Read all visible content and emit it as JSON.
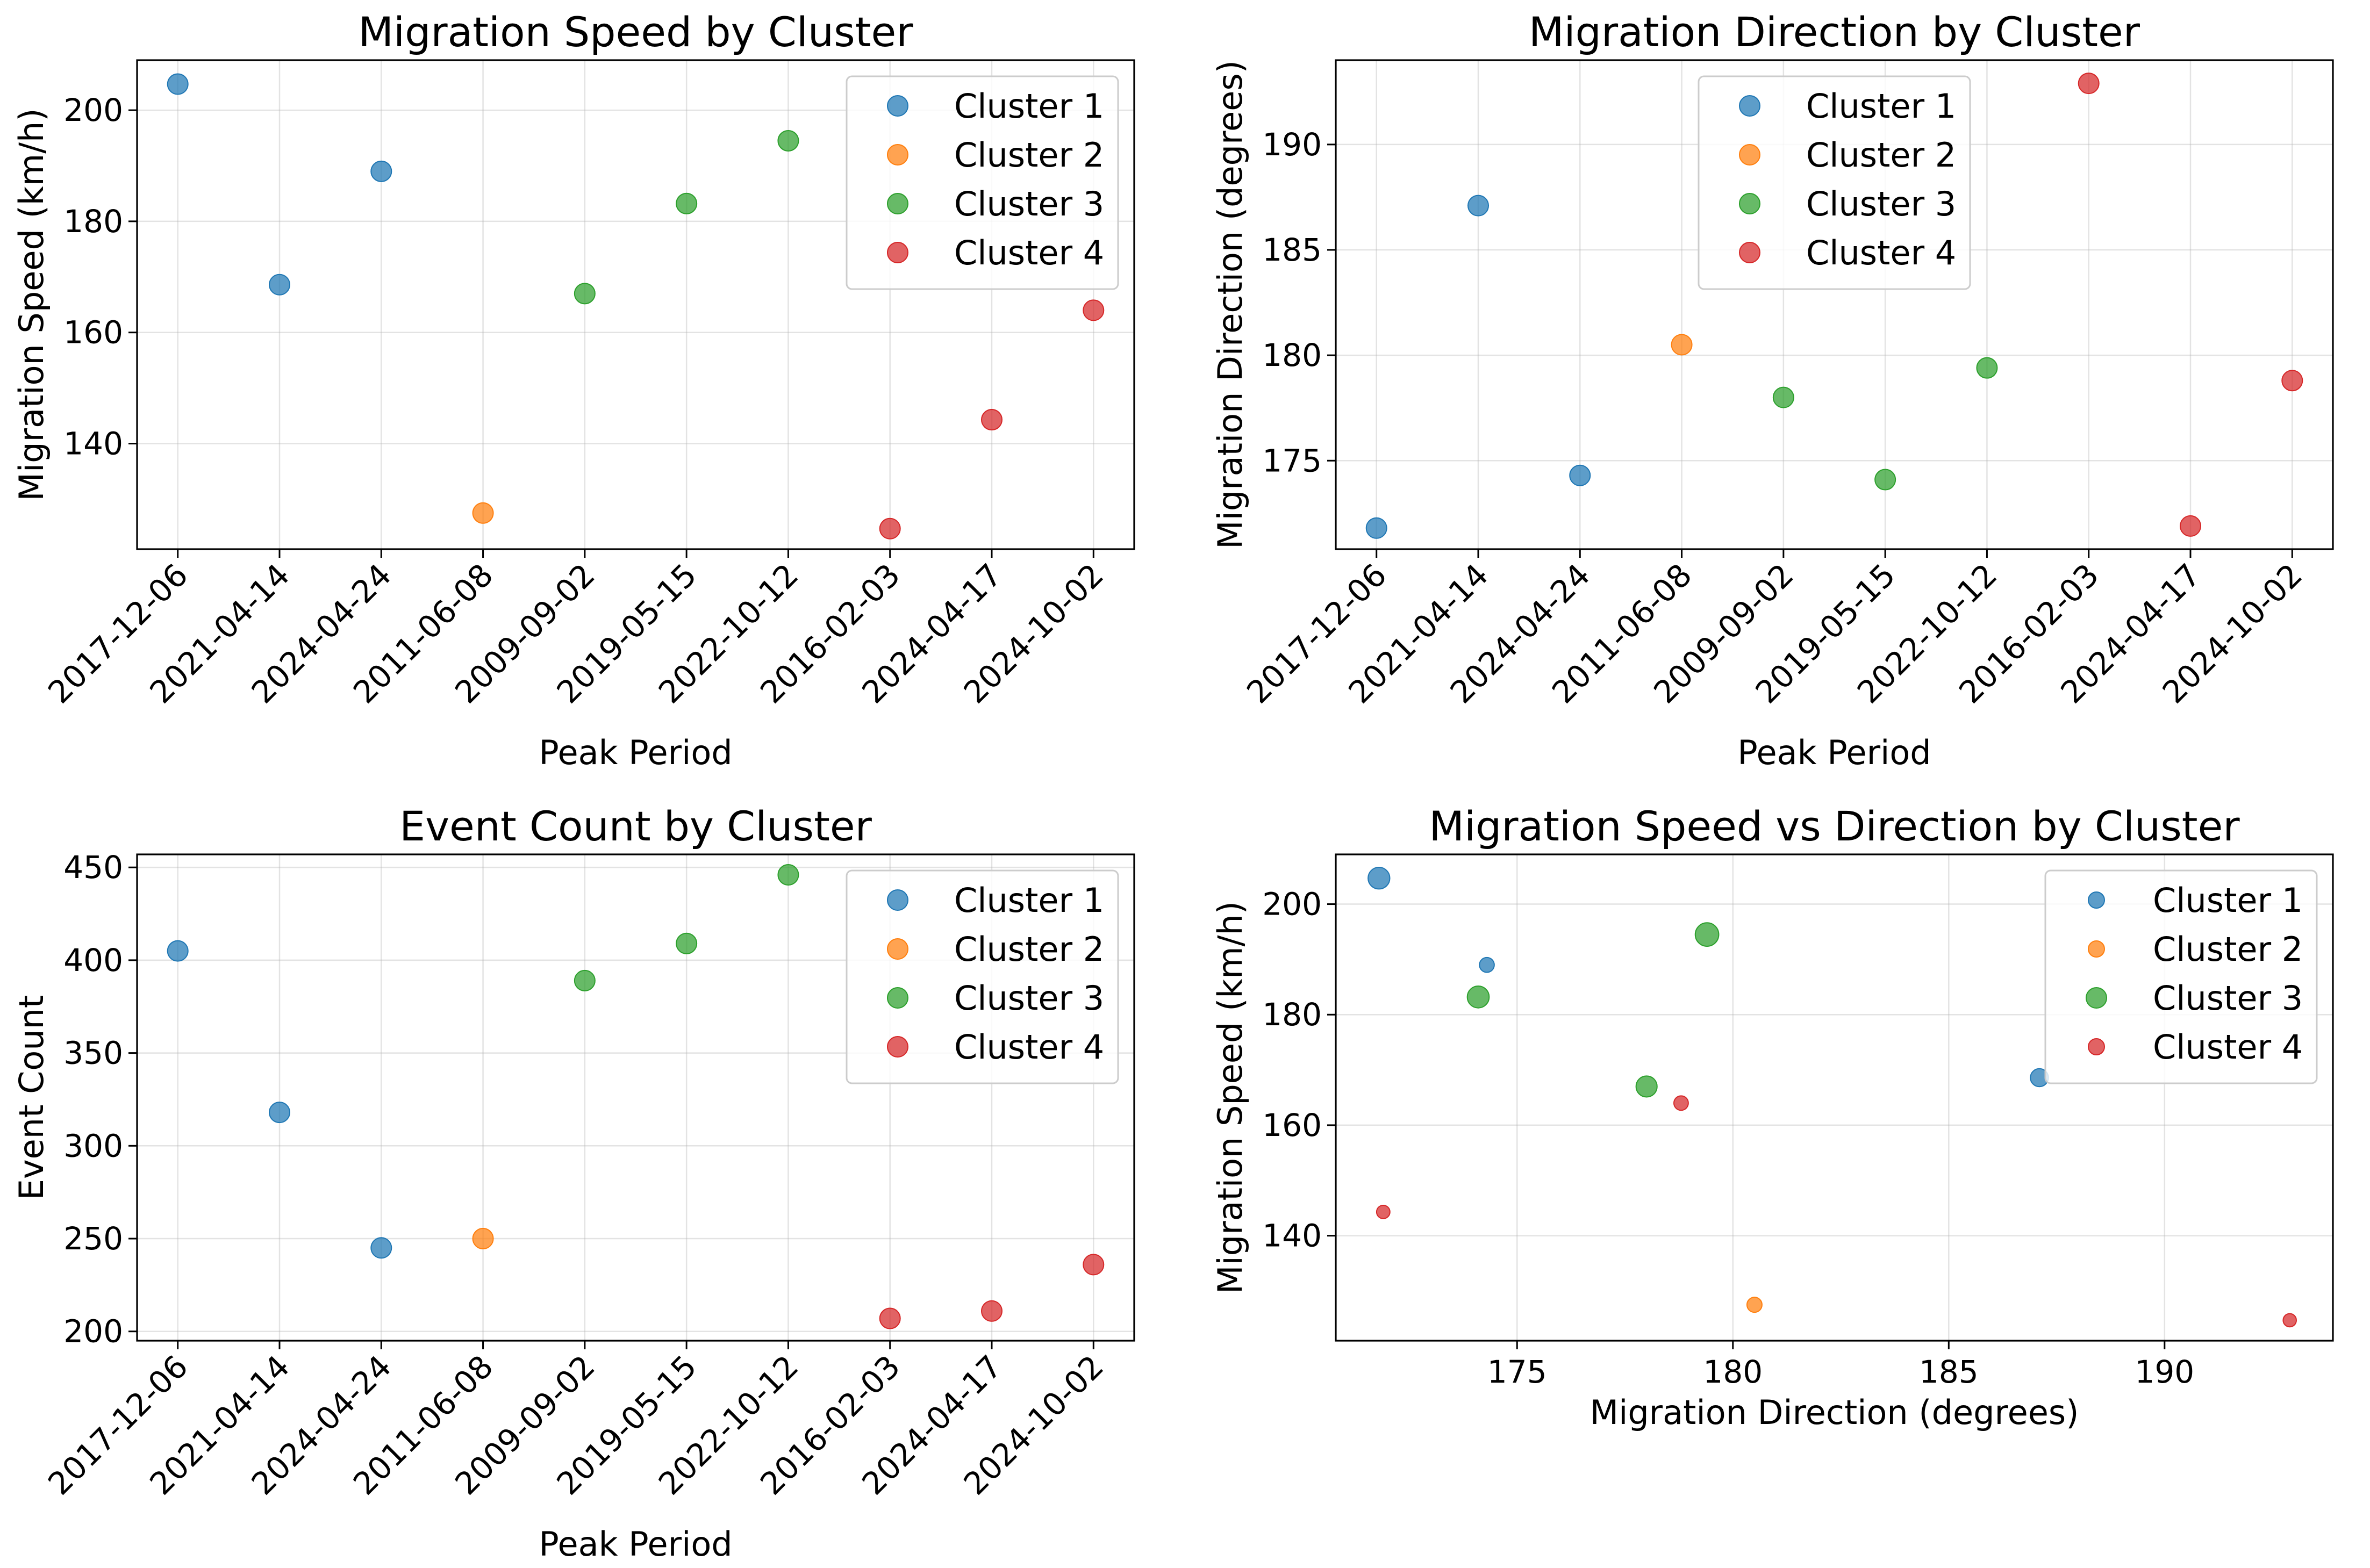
{
  "chart_data": [
    {
      "type": "scatter",
      "title": "Migration Speed by Cluster",
      "xlabel": "Peak Period",
      "ylabel": "Migration Speed (km/h)",
      "categories": [
        "2017-12-06",
        "2021-04-14",
        "2024-04-24",
        "2011-06-08",
        "2009-09-02",
        "2019-05-15",
        "2022-10-12",
        "2016-02-03",
        "2024-04-17",
        "2024-10-02"
      ],
      "ylim": [
        121,
        209
      ],
      "yticks": [
        140,
        160,
        180,
        200
      ],
      "grid": true,
      "legend": "top-right",
      "series": [
        {
          "name": "Cluster 1",
          "color": "#1f77b4",
          "x": [
            0,
            1,
            2
          ],
          "y": [
            204.7,
            168.6,
            189.0
          ]
        },
        {
          "name": "Cluster 2",
          "color": "#ff7f0e",
          "x": [
            3
          ],
          "y": [
            127.5
          ]
        },
        {
          "name": "Cluster 3",
          "color": "#2ca02c",
          "x": [
            4,
            5,
            6
          ],
          "y": [
            167.0,
            183.2,
            194.5
          ]
        },
        {
          "name": "Cluster 4",
          "color": "#d62728",
          "x": [
            7,
            8,
            9
          ],
          "y": [
            124.7,
            144.3,
            164.0
          ]
        }
      ]
    },
    {
      "type": "scatter",
      "title": "Migration Direction by Cluster",
      "xlabel": "Peak Period",
      "ylabel": "Migration Direction (degrees)",
      "categories": [
        "2017-12-06",
        "2021-04-14",
        "2024-04-24",
        "2011-06-08",
        "2009-09-02",
        "2019-05-15",
        "2022-10-12",
        "2016-02-03",
        "2024-04-17",
        "2024-10-02"
      ],
      "ylim": [
        170.8,
        194.0
      ],
      "yticks": [
        175,
        180,
        185,
        190
      ],
      "grid": true,
      "legend": "top-center",
      "series": [
        {
          "name": "Cluster 1",
          "color": "#1f77b4",
          "x": [
            0,
            1,
            2
          ],
          "y": [
            171.8,
            187.1,
            174.3
          ]
        },
        {
          "name": "Cluster 2",
          "color": "#ff7f0e",
          "x": [
            3
          ],
          "y": [
            180.5
          ]
        },
        {
          "name": "Cluster 3",
          "color": "#2ca02c",
          "x": [
            4,
            5,
            6
          ],
          "y": [
            178.0,
            174.1,
            179.4
          ]
        },
        {
          "name": "Cluster 4",
          "color": "#d62728",
          "x": [
            7,
            8,
            9
          ],
          "y": [
            192.9,
            171.9,
            178.8
          ]
        }
      ]
    },
    {
      "type": "scatter",
      "title": "Event Count by Cluster",
      "xlabel": "Peak Period",
      "ylabel": "Event Count",
      "categories": [
        "2017-12-06",
        "2021-04-14",
        "2024-04-24",
        "2011-06-08",
        "2009-09-02",
        "2019-05-15",
        "2022-10-12",
        "2016-02-03",
        "2024-04-17",
        "2024-10-02"
      ],
      "ylim": [
        195,
        457
      ],
      "yticks": [
        200,
        250,
        300,
        350,
        400,
        450
      ],
      "grid": true,
      "legend": "top-right",
      "series": [
        {
          "name": "Cluster 1",
          "color": "#1f77b4",
          "x": [
            0,
            1,
            2
          ],
          "y": [
            405,
            318,
            245
          ]
        },
        {
          "name": "Cluster 2",
          "color": "#ff7f0e",
          "x": [
            3
          ],
          "y": [
            250
          ]
        },
        {
          "name": "Cluster 3",
          "color": "#2ca02c",
          "x": [
            4,
            5,
            6
          ],
          "y": [
            389,
            409,
            446
          ]
        },
        {
          "name": "Cluster 4",
          "color": "#d62728",
          "x": [
            7,
            8,
            9
          ],
          "y": [
            207,
            211,
            236
          ]
        }
      ]
    },
    {
      "type": "scatter",
      "title": "Migration Speed vs Direction by Cluster",
      "xlabel": "Migration Direction (degrees)",
      "ylabel": "Migration Speed (km/h)",
      "xlim": [
        170.8,
        193.9
      ],
      "xticks": [
        175,
        180,
        185,
        190
      ],
      "ylim": [
        121,
        209
      ],
      "yticks": [
        140,
        160,
        180,
        200
      ],
      "grid": true,
      "legend": "top-right",
      "series": [
        {
          "name": "Cluster 1",
          "color": "#1f77b4",
          "x": [
            171.8,
            187.1,
            174.3
          ],
          "y": [
            204.7,
            168.6,
            189.0
          ],
          "sizes": [
            405,
            318,
            245
          ]
        },
        {
          "name": "Cluster 2",
          "color": "#ff7f0e",
          "x": [
            180.5
          ],
          "y": [
            127.5
          ],
          "sizes": [
            250
          ]
        },
        {
          "name": "Cluster 3",
          "color": "#2ca02c",
          "x": [
            178.0,
            174.1,
            179.4
          ],
          "y": [
            167.0,
            183.2,
            194.5
          ],
          "sizes": [
            389,
            409,
            446
          ]
        },
        {
          "name": "Cluster 4",
          "color": "#d62728",
          "x": [
            192.9,
            171.9,
            178.8
          ],
          "y": [
            124.7,
            144.3,
            164.0
          ],
          "sizes": [
            207,
            211,
            236
          ]
        }
      ]
    }
  ]
}
